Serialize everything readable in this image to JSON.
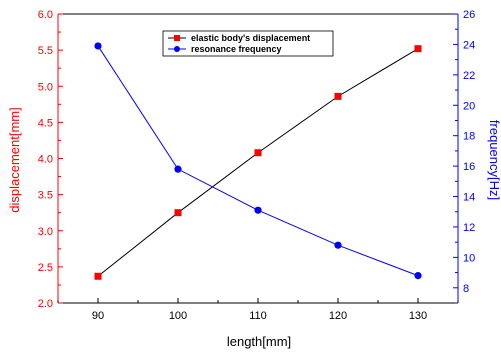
{
  "chart_data": {
    "type": "line",
    "x": [
      90,
      100,
      110,
      120,
      130
    ],
    "xlabel": "length[mm]",
    "xlim": [
      85,
      135
    ],
    "xticks": [
      "90",
      "100",
      "110",
      "120",
      "130"
    ],
    "ylabel_left": "displacement[mm]",
    "ylim_left": [
      2.0,
      6.0
    ],
    "yticks_left": [
      "2.0",
      "2.5",
      "3.0",
      "3.5",
      "4.0",
      "4.5",
      "5.0",
      "5.5",
      "6.0"
    ],
    "ylabel_right": "frequency[Hz]",
    "ylim_right": [
      7,
      26
    ],
    "yticks_right": [
      "8",
      "10",
      "12",
      "14",
      "16",
      "18",
      "20",
      "22",
      "24",
      "26"
    ],
    "grid": false,
    "legend_position": "top-center",
    "series": [
      {
        "name": "elastic body's displacement",
        "axis": "left",
        "values": [
          2.37,
          3.25,
          4.08,
          4.86,
          5.52
        ],
        "marker": "square",
        "marker_color": "#ff0000",
        "line_color": "#000000"
      },
      {
        "name": "resonance frequency",
        "axis": "right",
        "values": [
          23.9,
          15.8,
          13.1,
          10.8,
          8.8
        ],
        "marker": "circle",
        "marker_color": "#0000ff",
        "line_color": "#0000ff"
      }
    ],
    "colors": {
      "left_axis": "#ff0000",
      "right_axis": "#0000ff",
      "bottom_axis": "#000000"
    }
  }
}
